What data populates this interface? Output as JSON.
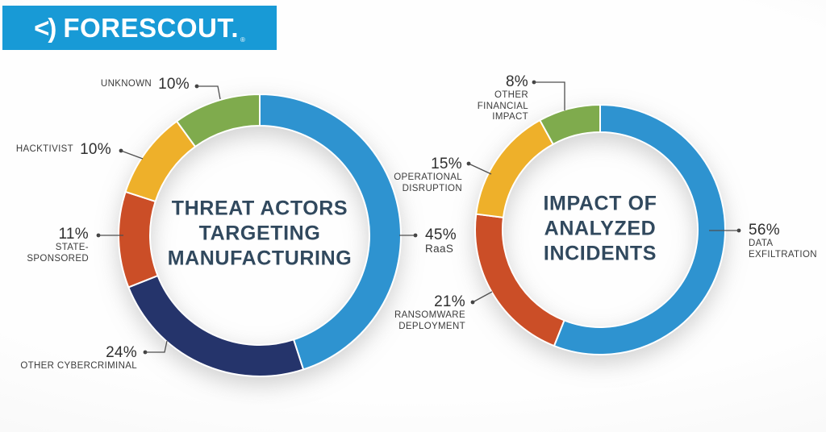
{
  "logo": {
    "mark": "<)",
    "text": "FORESCOUT.",
    "reg": "®",
    "bg_color": "#189ad6"
  },
  "colors": {
    "blue": "#2e93d0",
    "navy": "#25346b",
    "red": "#cb4e27",
    "yellow": "#eeb02a",
    "green": "#7fab4d",
    "title_text": "#31495e",
    "label_text": "#3c3c3c"
  },
  "chart_data": [
    {
      "type": "pie",
      "style": "donut",
      "title": "THREAT ACTORS TARGETING MANUFACTURING",
      "title_lines": [
        "THREAT ACTORS",
        "TARGETING",
        "MANUFACTURING"
      ],
      "legend": "none",
      "start_angle_deg": 0,
      "direction": "clockwise",
      "segments": [
        {
          "label": "RaaS",
          "value": 45,
          "display": "45%",
          "color": "#2e93d0"
        },
        {
          "label": "OTHER CYBERCRIMINAL",
          "value": 24,
          "display": "24%",
          "color": "#25346b"
        },
        {
          "label": "STATE-SPONSORED",
          "value": 11,
          "display": "11%",
          "color": "#cb4e27"
        },
        {
          "label": "HACKTIVIST",
          "value": 10,
          "display": "10%",
          "color": "#eeb02a"
        },
        {
          "label": "UNKNOWN",
          "value": 10,
          "display": "10%",
          "color": "#7fab4d"
        }
      ]
    },
    {
      "type": "pie",
      "style": "donut",
      "title": "IMPACT OF ANALYZED INCIDENTS",
      "title_lines": [
        "IMPACT OF",
        "ANALYZED",
        "INCIDENTS"
      ],
      "legend": "none",
      "start_angle_deg": 0,
      "direction": "clockwise",
      "segments": [
        {
          "label": "DATA EXFILTRATION",
          "value": 56,
          "display": "56%",
          "color": "#2e93d0"
        },
        {
          "label": "RANSOMWARE DEPLOYMENT",
          "value": 21,
          "display": "21%",
          "color": "#cb4e27"
        },
        {
          "label": "OPERATIONAL DISRUPTION",
          "value": 15,
          "display": "15%",
          "color": "#eeb02a"
        },
        {
          "label": "OTHER FINANCIAL IMPACT",
          "value": 8,
          "display": "8%",
          "color": "#7fab4d"
        }
      ]
    }
  ]
}
